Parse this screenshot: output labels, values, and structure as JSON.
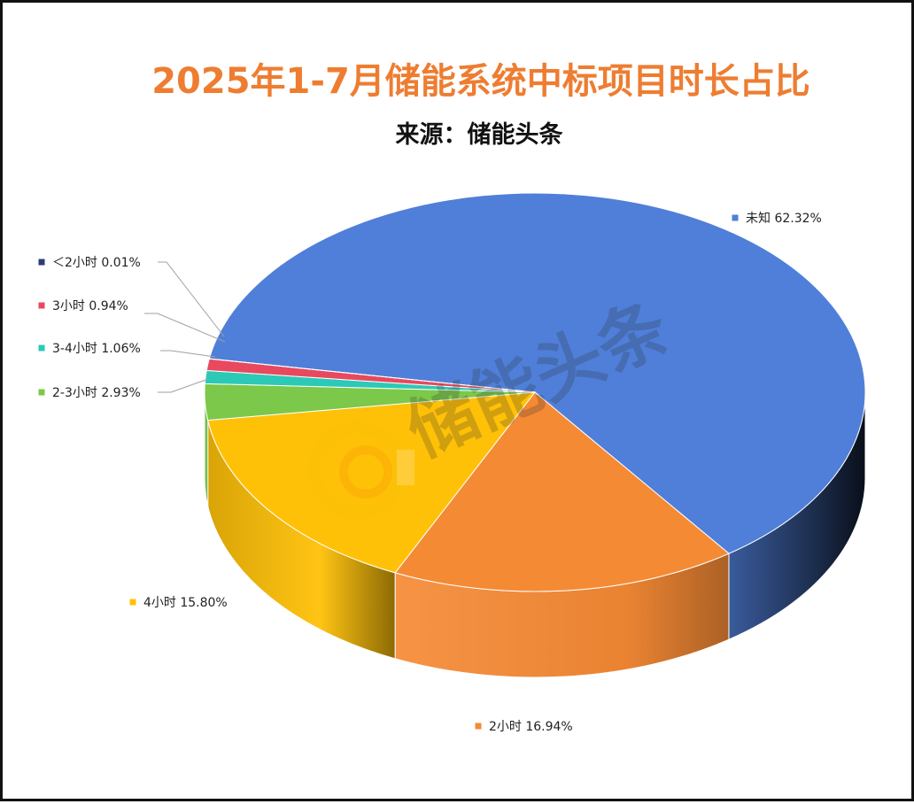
{
  "chart_data": {
    "type": "pie",
    "style": "3d-exploded-free",
    "title": "2025年1-7月储能系统中标项目时长占比",
    "subtitle": "来源：储能头条",
    "watermark": "储能头条",
    "slices": [
      {
        "name": "未知",
        "value": 62.32,
        "label": "未知 62.32%",
        "color": "#4F7FD9"
      },
      {
        "name": "2小时",
        "value": 16.94,
        "label": "2小时 16.94%",
        "color": "#F58A35"
      },
      {
        "name": "4小时",
        "value": 15.8,
        "label": "4小时 15.80%",
        "color": "#FFC108"
      },
      {
        "name": "2-3小时",
        "value": 2.93,
        "label": "2-3小时 2.93%",
        "color": "#7CC84A"
      },
      {
        "name": "3-4小时",
        "value": 1.06,
        "label": "3-4小时 1.06%",
        "color": "#2CC9B6"
      },
      {
        "name": "3小时",
        "value": 0.94,
        "label": "3小时 0.94%",
        "color": "#E8495E"
      },
      {
        "name": "<2小时",
        "value": 0.01,
        "label": "＜2小时 0.01%",
        "color": "#2A3F7A"
      }
    ],
    "colors": {
      "title": "#EE7D31",
      "subtitle": "#111111",
      "label": "#222222",
      "leader": "#A0A0A0"
    }
  }
}
